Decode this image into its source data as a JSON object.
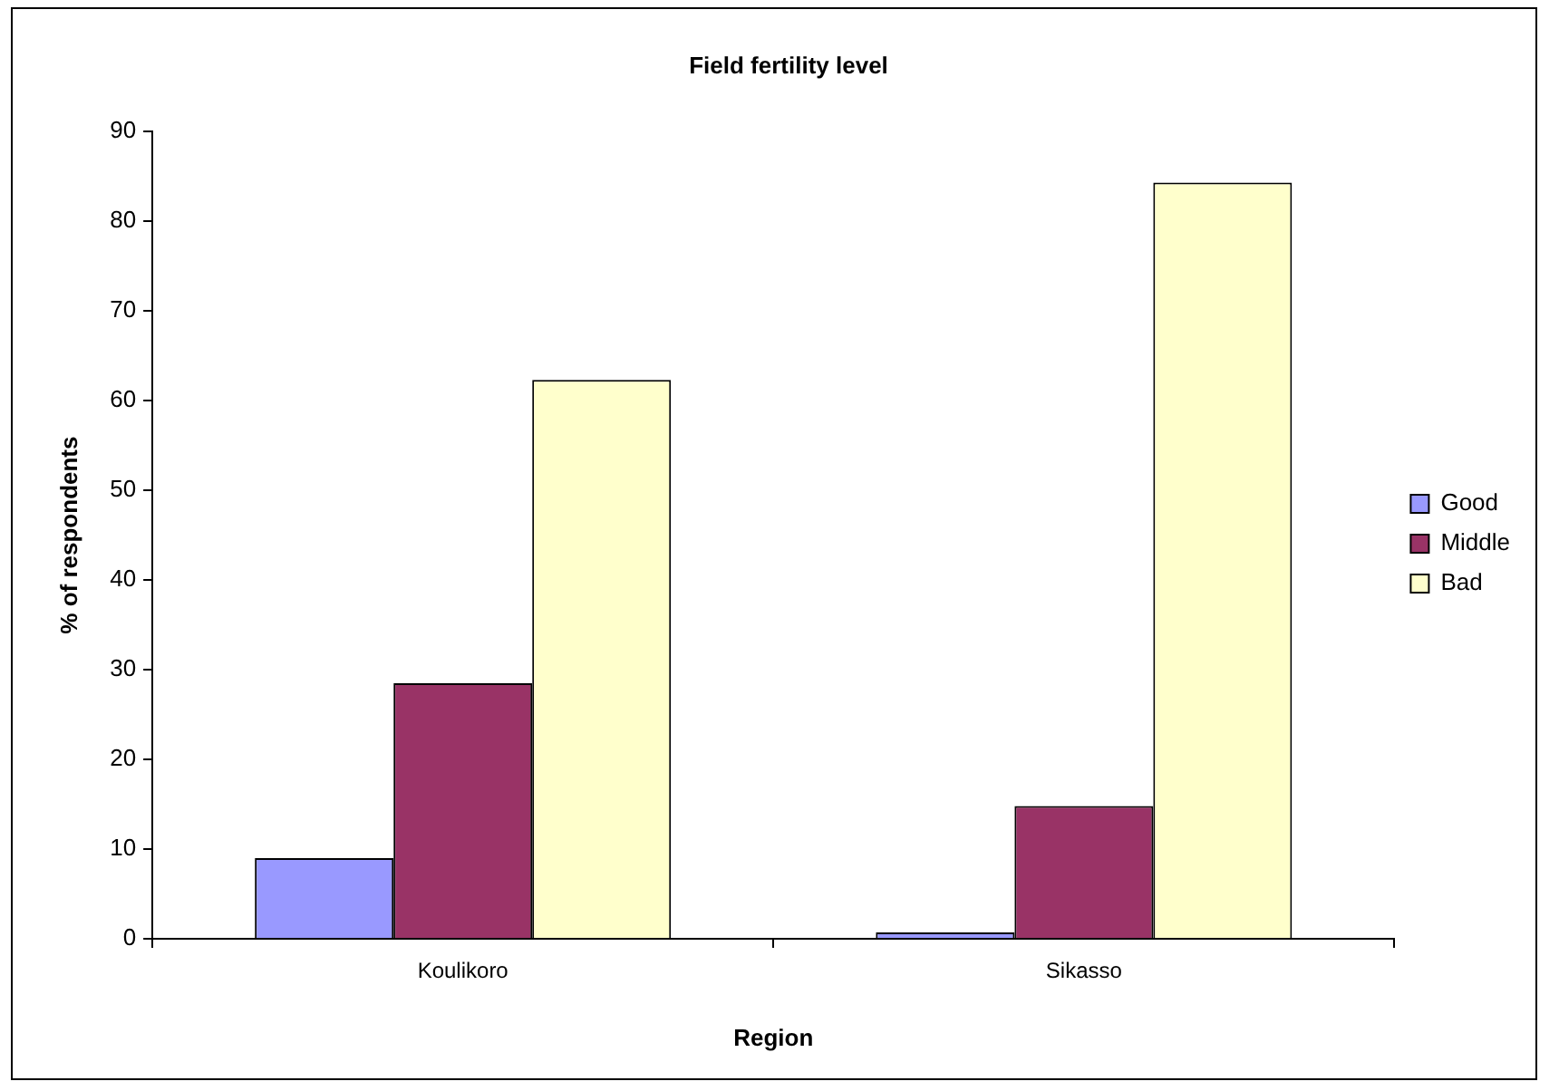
{
  "chart_data": {
    "type": "bar",
    "title": "Field fertility level",
    "xlabel": "Region",
    "ylabel": "% of respondents",
    "categories": [
      "Koulikoro",
      "Sikasso"
    ],
    "series": [
      {
        "name": "Good",
        "color": "#9999ff",
        "values": [
          9,
          0.7
        ]
      },
      {
        "name": "Middle",
        "color": "#993366",
        "values": [
          28.5,
          14.8
        ]
      },
      {
        "name": "Bad",
        "color": "#ffffcc",
        "values": [
          62.3,
          84.3
        ]
      }
    ],
    "ylim": [
      0,
      90
    ],
    "yticks": [
      0,
      10,
      20,
      30,
      40,
      50,
      60,
      70,
      80,
      90
    ],
    "legend": "right"
  }
}
